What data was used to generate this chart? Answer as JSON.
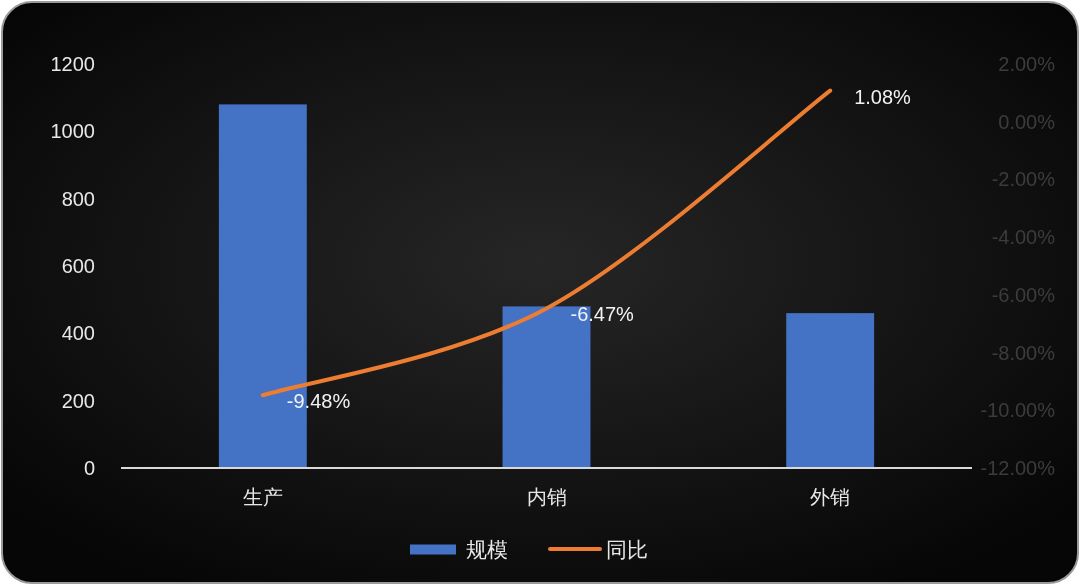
{
  "chart_data": {
    "type": "bar",
    "categories": [
      "生产",
      "内销",
      "外销"
    ],
    "series": [
      {
        "name": "规模",
        "color": "#4472c4",
        "values": [
          1080,
          480,
          460
        ]
      },
      {
        "name": "同比",
        "type": "line",
        "axis": "y2",
        "color": "#ed7d31",
        "values": [
          -9.48,
          -6.47,
          1.08
        ],
        "value_labels": [
          "-9.48%",
          "-6.47%",
          "1.08%"
        ]
      }
    ],
    "ylim": [
      0,
      1200
    ],
    "yticks": [
      0,
      200,
      400,
      600,
      800,
      1000,
      1200
    ],
    "y2lim": [
      -12,
      2
    ],
    "y2ticks": [
      {
        "value": 2,
        "label": "2.00%"
      },
      {
        "value": 0,
        "label": "0.00%"
      },
      {
        "value": -2,
        "label": "-2.00%"
      },
      {
        "value": -4,
        "label": "-4.00%"
      },
      {
        "value": -6,
        "label": "-6.00%"
      },
      {
        "value": -8,
        "label": "-8.00%"
      },
      {
        "value": -10,
        "label": "-10.00%"
      },
      {
        "value": -12,
        "label": "-12.00%"
      }
    ],
    "legend": "bottom"
  }
}
